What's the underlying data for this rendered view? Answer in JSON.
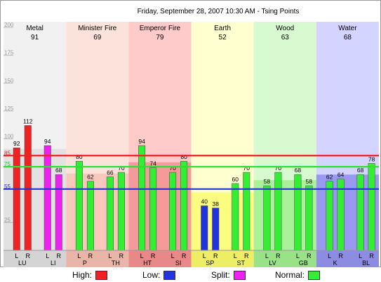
{
  "chart_data": {
    "type": "bar",
    "title": "Friday, September 28, 2007 10:30 AM - Tsing Points",
    "ylim": [
      0,
      200
    ],
    "y_ticks": [
      {
        "value": 25,
        "label": "25",
        "color": "#9a9a9a"
      },
      {
        "value": 55,
        "label": "55",
        "color": "#2b2bd9"
      },
      {
        "value": 75,
        "label": "75",
        "color": "#25bf25"
      },
      {
        "value": 85,
        "label": "85",
        "color": "#d92b2b"
      },
      {
        "value": 100,
        "label": "100",
        "color": "#9a9a9a"
      },
      {
        "value": 125,
        "label": "125",
        "color": "#9a9a9a"
      },
      {
        "value": 150,
        "label": "150",
        "color": "#9a9a9a"
      },
      {
        "value": 175,
        "label": "175",
        "color": "#9a9a9a"
      },
      {
        "value": 200,
        "label": "200",
        "color": "#9a9a9a"
      }
    ],
    "threshold_lines": [
      {
        "name": "High",
        "value": 85,
        "color": "#ee2222"
      },
      {
        "name": "Normal",
        "value": 75,
        "color": "#33dd33"
      },
      {
        "name": "Low",
        "value": 55,
        "color": "#2233dd"
      }
    ],
    "elements": [
      {
        "name": "Metal",
        "value": "91",
        "bg": "#f1f1f1",
        "lower_bg": "#e2e2e2",
        "lower_value": 91,
        "footer_bg": "#d4d4d4"
      },
      {
        "name": "Minister Fire",
        "value": "69",
        "bg": "#fbe3dc",
        "lower_bg": "#f7c8bb",
        "lower_value": 69,
        "footer_bg": "#e8b5a8"
      },
      {
        "name": "Emperor Fire",
        "value": "79",
        "bg": "#fecaca",
        "lower_bg": "#f59a9a",
        "lower_value": 79,
        "footer_bg": "#e98888"
      },
      {
        "name": "Earth",
        "value": "52",
        "bg": "#ffffcf",
        "lower_bg": "#fcfc80",
        "lower_value": 52,
        "footer_bg": "#eeee66"
      },
      {
        "name": "Wood",
        "value": "63",
        "bg": "#d8fad0",
        "lower_bg": "#a9f29a",
        "lower_value": 63,
        "footer_bg": "#99e288"
      },
      {
        "name": "Water",
        "value": "68",
        "bg": "#d3d4ff",
        "lower_bg": "#9999f0",
        "lower_value": 68,
        "footer_bg": "#8c8ce2"
      }
    ],
    "meridians": [
      {
        "code": "LU",
        "element": 0,
        "bars": [
          {
            "side": "L",
            "value": 92,
            "status": "High"
          },
          {
            "side": "R",
            "value": 112,
            "status": "High"
          }
        ]
      },
      {
        "code": "LI",
        "element": 0,
        "bars": [
          {
            "side": "L",
            "value": 94,
            "status": "Split"
          },
          {
            "side": "R",
            "value": 68,
            "status": "Split"
          }
        ]
      },
      {
        "code": "P",
        "element": 1,
        "bars": [
          {
            "side": "L",
            "value": 80,
            "status": "Normal"
          },
          {
            "side": "R",
            "value": 62,
            "status": "Normal"
          }
        ]
      },
      {
        "code": "TH",
        "element": 1,
        "bars": [
          {
            "side": "L",
            "value": 66,
            "status": "Normal"
          },
          {
            "side": "R",
            "value": 70,
            "status": "Normal"
          }
        ]
      },
      {
        "code": "HT",
        "element": 2,
        "bars": [
          {
            "side": "L",
            "value": 94,
            "status": "Normal"
          },
          {
            "side": "R",
            "value": 74,
            "status": "Normal"
          }
        ]
      },
      {
        "code": "SI",
        "element": 2,
        "bars": [
          {
            "side": "L",
            "value": 70,
            "status": "Normal"
          },
          {
            "side": "R",
            "value": 80,
            "status": "Normal"
          }
        ]
      },
      {
        "code": "SP",
        "element": 3,
        "bars": [
          {
            "side": "L",
            "value": 40,
            "status": "Low"
          },
          {
            "side": "R",
            "value": 38,
            "status": "Low"
          }
        ]
      },
      {
        "code": "ST",
        "element": 3,
        "bars": [
          {
            "side": "L",
            "value": 60,
            "status": "Normal"
          },
          {
            "side": "R",
            "value": 70,
            "status": "Normal"
          }
        ]
      },
      {
        "code": "LV",
        "element": 4,
        "bars": [
          {
            "side": "L",
            "value": 58,
            "status": "Normal"
          },
          {
            "side": "R",
            "value": 70,
            "status": "Normal"
          }
        ]
      },
      {
        "code": "GB",
        "element": 4,
        "bars": [
          {
            "side": "L",
            "value": 68,
            "status": "Normal"
          },
          {
            "side": "R",
            "value": 58,
            "status": "Normal"
          }
        ]
      },
      {
        "code": "K",
        "element": 5,
        "bars": [
          {
            "side": "L",
            "value": 62,
            "status": "Normal"
          },
          {
            "side": "R",
            "value": 64,
            "status": "Normal"
          }
        ]
      },
      {
        "code": "BL",
        "element": 5,
        "bars": [
          {
            "side": "L",
            "value": 68,
            "status": "Normal"
          },
          {
            "side": "R",
            "value": 78,
            "status": "Normal"
          }
        ]
      }
    ],
    "status_colors": {
      "High": "#ee2222",
      "Low": "#2233dd",
      "Split": "#ee22ee",
      "Normal": "#33ee33"
    }
  },
  "legend": [
    {
      "label": "High:",
      "color": "#ee2222"
    },
    {
      "label": "Low:",
      "color": "#2233dd"
    },
    {
      "label": "Split:",
      "color": "#ee22ee"
    },
    {
      "label": "Normal:",
      "color": "#33ee33"
    }
  ]
}
